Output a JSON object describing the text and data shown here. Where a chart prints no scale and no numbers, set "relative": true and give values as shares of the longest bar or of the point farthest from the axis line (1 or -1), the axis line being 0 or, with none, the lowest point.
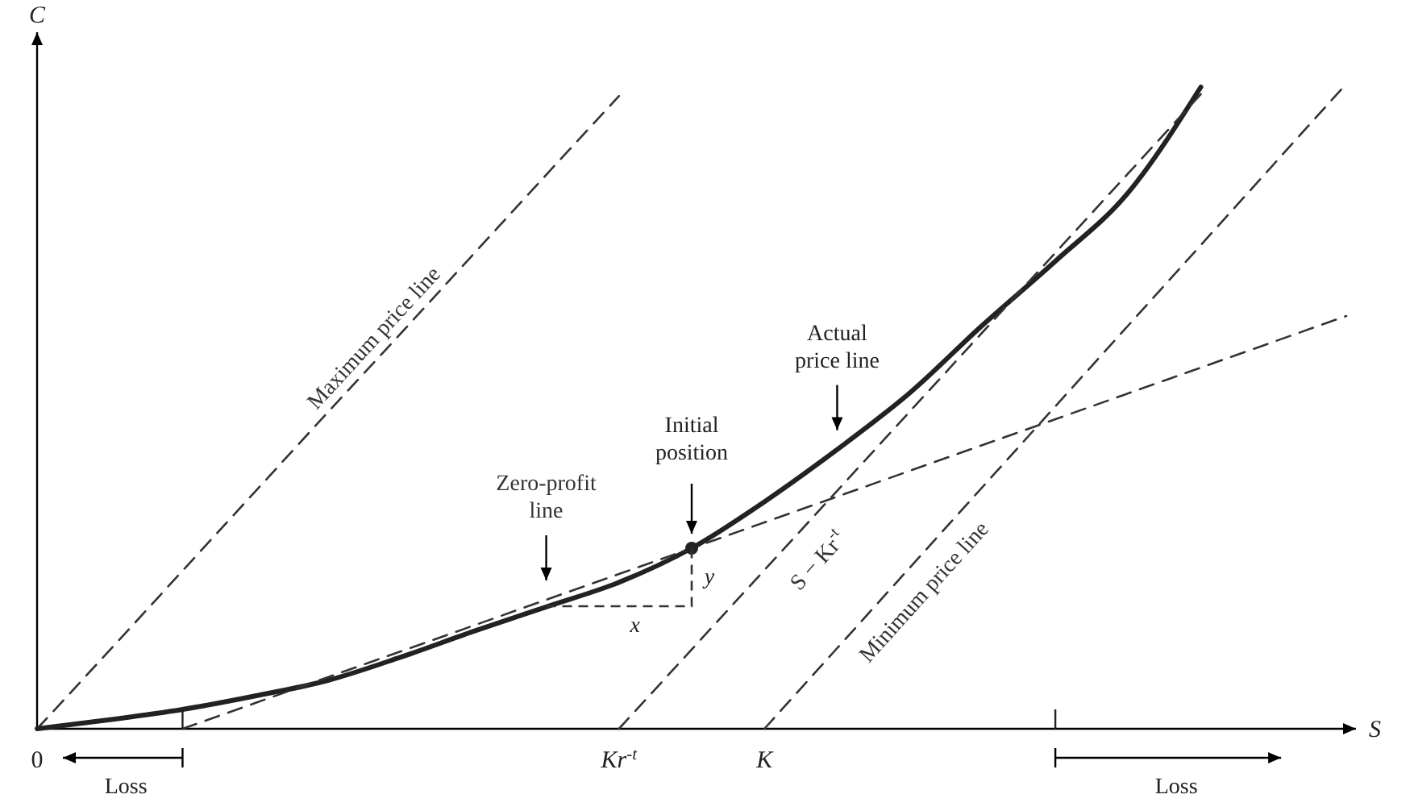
{
  "chart_data": {
    "type": "line",
    "relative": true,
    "xlabel": "S",
    "ylabel": "C",
    "categories": [
      "0",
      null,
      null,
      null,
      null,
      null,
      null,
      null,
      "Kr$^{-t}$",
      null,
      "K",
      null,
      null,
      null,
      null,
      null,
      null,
      null,
      null
    ],
    "series": [
      {
        "name": "Maximum price line",
        "color": "#333333",
        "line_style": "dashed",
        "values": [
          0,
          0.122,
          0.245,
          0.368,
          0.491,
          0.613,
          0.736,
          0.859,
          0.981,
          null,
          null,
          null,
          null,
          null,
          null,
          null,
          null,
          null,
          null
        ]
      },
      {
        "name": "Actual price line",
        "color": "#222222",
        "line_style": "solid",
        "values": [
          0,
          0.014,
          0.03,
          0.051,
          0.075,
          0.111,
          0.151,
          0.189,
          0.227,
          0.28,
          0.352,
          0.433,
          0.521,
          0.626,
          0.725,
          0.831,
          0.995,
          null,
          null
        ]
      },
      {
        "name": "Zero-profit line",
        "color": "#333333",
        "line_style": "dashed",
        "values": [
          null,
          null,
          0,
          0.04,
          0.08,
          0.12,
          0.16,
          0.2,
          0.24,
          0.28,
          0.32,
          0.36,
          0.4,
          0.44,
          0.48,
          0.52,
          0.56,
          0.6,
          0.64
        ]
      },
      {
        "name": "S − Kr$^{-t}$",
        "color": "#333333",
        "line_style": "dashed",
        "values": [
          null,
          null,
          null,
          null,
          null,
          null,
          null,
          null,
          0,
          0.123,
          0.246,
          0.369,
          0.492,
          0.615,
          0.738,
          0.861,
          0.984,
          null,
          null
        ]
      },
      {
        "name": "Minimum price line",
        "color": "#333333",
        "line_style": "dashed",
        "values": [
          null,
          null,
          null,
          null,
          null,
          null,
          null,
          null,
          null,
          null,
          0,
          0.125,
          0.25,
          0.375,
          0.5,
          0.625,
          0.75,
          0.875,
          1
        ]
      },
      {
        "type": "scatter",
        "marker": "circle",
        "color": "#222222",
        "values": [
          null,
          null,
          null,
          null,
          null,
          null,
          null,
          null,
          null,
          0.28,
          null,
          null,
          null,
          null,
          null,
          null,
          null,
          null,
          null
        ]
      }
    ],
    "annotations": [
      "Initial position",
      "x",
      "y",
      "Loss",
      "Loss"
    ]
  }
}
